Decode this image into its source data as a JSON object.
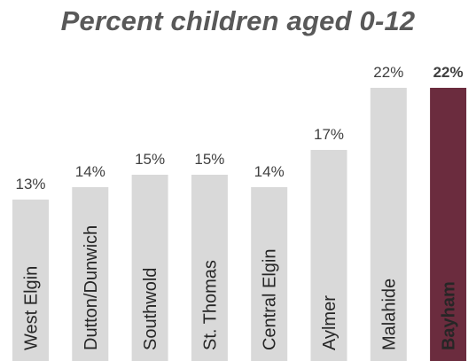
{
  "chart_data": {
    "type": "bar",
    "title": "Percent children aged 0-12",
    "xlabel": "",
    "ylabel": "",
    "categories": [
      "West Elgin",
      "Dutton/Dunwich",
      "Southwold",
      "St. Thomas",
      "Central Elgin",
      "Aylmer",
      "Malahide",
      "Bayham"
    ],
    "values": [
      13,
      14,
      15,
      15,
      14,
      17,
      22,
      22
    ],
    "value_labels": [
      "13%",
      "14%",
      "15%",
      "15%",
      "14%",
      "17%",
      "22%",
      "22%"
    ],
    "highlight": "Bayham",
    "ylim": [
      0,
      23.5
    ],
    "grid": false,
    "legend": "none",
    "colors": {
      "bar": "#d9d9d9",
      "highlight_bar": "#6b2c3e",
      "label": "#262626",
      "highlight_label": "#ffffff",
      "value": "#404040",
      "highlight_value": "#6b2c3e",
      "title": "#595959"
    }
  }
}
